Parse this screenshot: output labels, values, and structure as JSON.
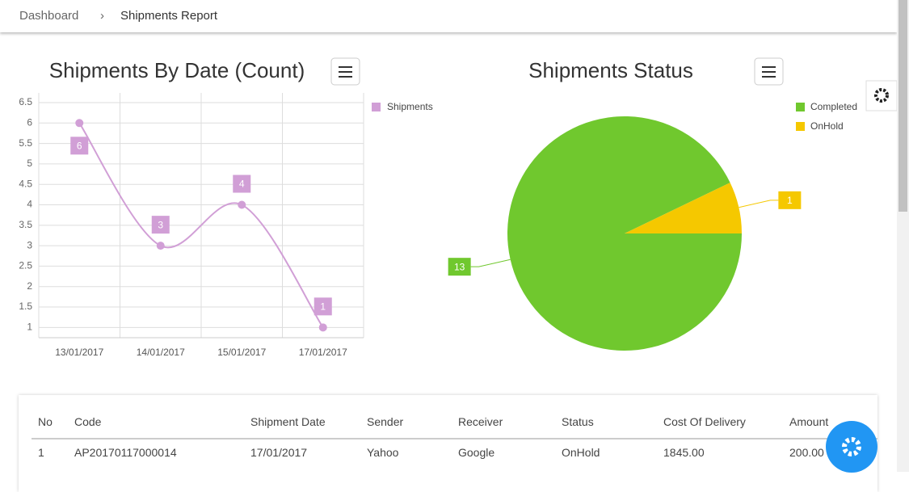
{
  "breadcrumb": [
    "Dashboard",
    "Shipments Report"
  ],
  "chart_data": [
    {
      "type": "line",
      "title": "Shipments By Date (Count)",
      "categories": [
        "13/01/2017",
        "14/01/2017",
        "15/01/2017",
        "17/01/2017"
      ],
      "series": [
        {
          "name": "Shipments",
          "color": "#d19fd6",
          "values": [
            6,
            3,
            4,
            1
          ]
        }
      ],
      "ylim": [
        0.75,
        6.5
      ],
      "yticks": [
        1,
        1.5,
        2,
        2.5,
        3,
        3.5,
        4,
        4.5,
        5,
        5.5,
        6,
        6.5
      ],
      "grid": true
    },
    {
      "type": "pie",
      "title": "Shipments Status",
      "categories": [
        "Completed",
        "OnHold"
      ],
      "values": [
        13,
        1
      ],
      "colors": [
        "#70c82e",
        "#f5c800"
      ]
    }
  ],
  "table": {
    "headers": [
      "No",
      "Code",
      "Shipment Date",
      "Sender",
      "Receiver",
      "Status",
      "Cost Of Delivery",
      "Amount"
    ],
    "rows": [
      [
        "1",
        "AP20170117000014",
        "17/01/2017",
        "Yahoo",
        "Google",
        "OnHold",
        "1845.00",
        "200.00"
      ]
    ]
  }
}
